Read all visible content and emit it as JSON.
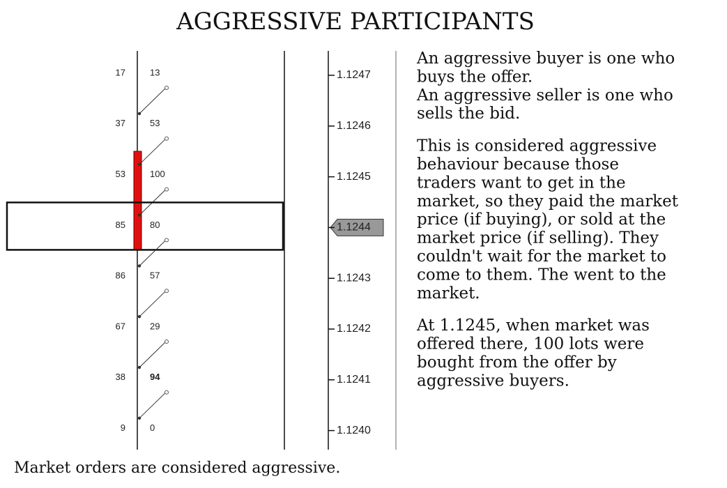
{
  "title": "AGGRESSIVE PARTICIPANTS",
  "ladder": {
    "current_row": 3,
    "rows": [
      {
        "bid": 17,
        "ask": 13,
        "price": "1.1247"
      },
      {
        "bid": 37,
        "ask": 53,
        "price": "1.1246"
      },
      {
        "bid": 53,
        "ask": 100,
        "price": "1.1245"
      },
      {
        "bid": 85,
        "ask": 80,
        "price": "1.1244"
      },
      {
        "bid": 86,
        "ask": 57,
        "price": "1.1243"
      },
      {
        "bid": 67,
        "ask": 29,
        "price": "1.1242"
      },
      {
        "bid": 38,
        "ask": 94,
        "price": "1.1241",
        "ask_color": "#1f2fd0"
      },
      {
        "bid": 9,
        "ask": 0,
        "price": "1.1240"
      }
    ]
  },
  "caption": "Market orders are considered aggressive.",
  "paragraphs": [
    [
      "An aggressive buyer is one who",
      "buys the offer.",
      "An aggressive seller is one who",
      "sells the bid."
    ],
    [
      "This is considered aggressive",
      "behaviour because those",
      "traders want to get in the",
      "market, so they paid the market",
      "price (if buying), or sold at the",
      "market price (if selling). They",
      "couldn't wait for the market to",
      "come to them. The went to the",
      "market."
    ],
    [
      "At 1.1245, when market was",
      "offered there, 100 lots were",
      "bought from the offer by",
      "aggressive buyers."
    ]
  ]
}
